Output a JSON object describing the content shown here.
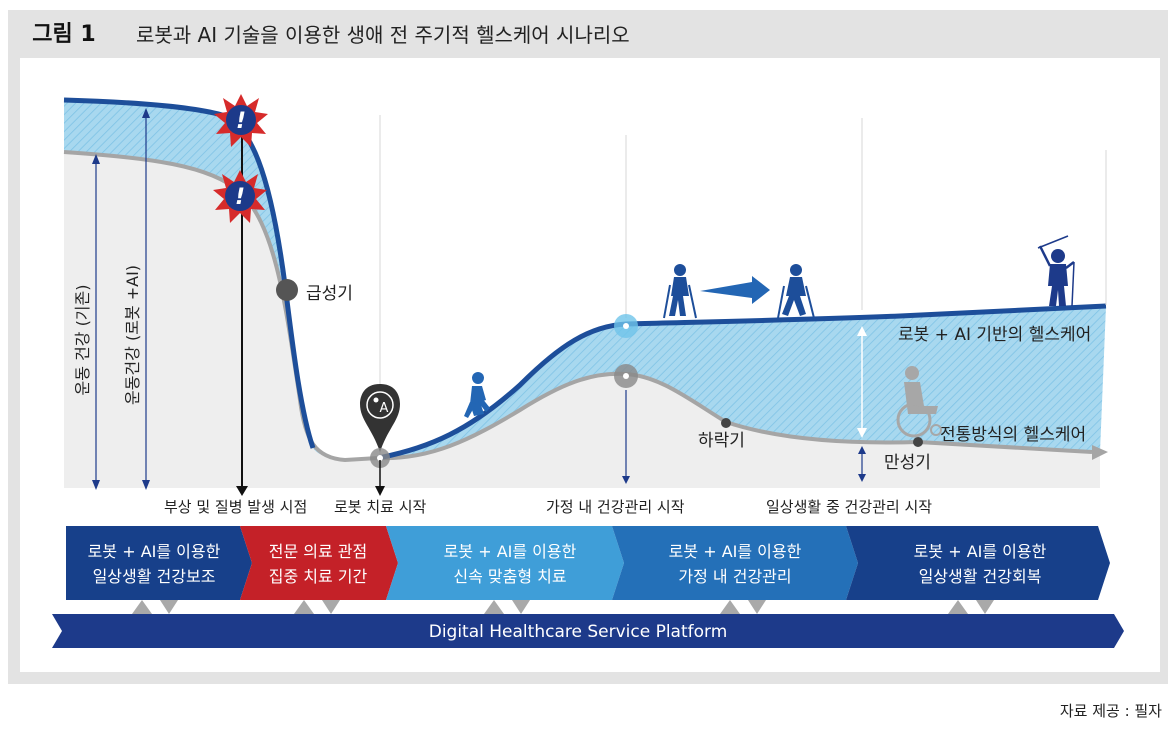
{
  "header": {
    "figure_label": "그림 1",
    "title": "로봇과 AI 기술을 이용한 생애 전 주기적 헬스케어 시나리오"
  },
  "axis_labels": {
    "existing": "운동 건강 (기존)",
    "robot_ai": "운동건강 (로봇 +AI)"
  },
  "curve_labels": {
    "acute": "급성기",
    "decline": "하락기",
    "chronic": "만성기",
    "robot_ai_care": "로봇 + AI 기반의 헬스케어",
    "traditional_care": "전통방식의 헬스케어"
  },
  "timeline_labels": {
    "injury": "부상 및 질병 발생 시점",
    "robot_start": "로봇 치료 시작",
    "home_start": "가정 내 건강관리 시작",
    "daily_start": "일상생활 중 건강관리 시작"
  },
  "phases": [
    {
      "line1": "로봇 + AI를 이용한",
      "line2": "일상생활 건강보조",
      "color": "#17408a"
    },
    {
      "line1": "전문 의료 관점",
      "line2": "집중 치료 기간",
      "color": "#c42128"
    },
    {
      "line1": "로봇 + AI를 이용한",
      "line2": "신속 맞춤형 치료",
      "color": "#3f9ed8"
    },
    {
      "line1": "로봇 + AI를 이용한",
      "line2": "가정 내 건강관리",
      "color": "#2470b8"
    },
    {
      "line1": "로봇 + AI를 이용한",
      "line2": "일상생활 건강회복",
      "color": "#17408a"
    }
  ],
  "platform": {
    "label": "Digital Healthcare Service Platform",
    "color": "#1d3a8a"
  },
  "alert_symbol": "!",
  "pin_glyph": "A",
  "source": "자료 제공 : 필자",
  "colors": {
    "dark_blue": "#1d4e9a",
    "light_band": "#a8d8ef",
    "grey_curve": "#a5a5a5",
    "grey_area": "#eeeeee"
  }
}
